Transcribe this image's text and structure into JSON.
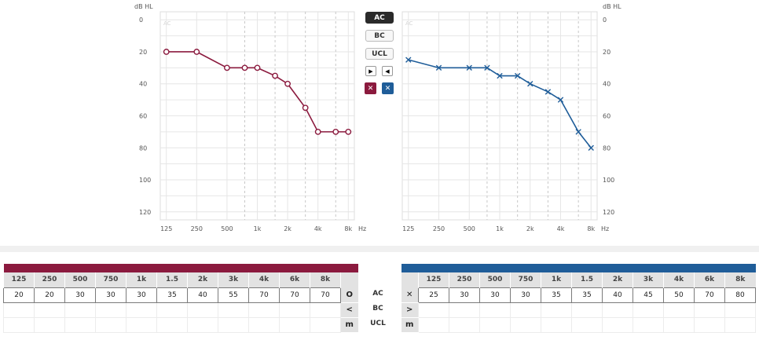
{
  "colors": {
    "right": "#8b1a3e",
    "left": "#1f5d99",
    "grid": "#e6e6e6",
    "dashed": "#c8c8c8"
  },
  "icons": {
    "right_marker": "circle-icon",
    "left_marker": "cross-icon",
    "right_bc": "chevron-left-icon",
    "left_bc": "chevron-right-icon",
    "ucl": "ucl-bracket-icon"
  },
  "controls": {
    "ac_label": "AC",
    "bc_label": "BC",
    "ucl_label": "UCL",
    "arrow_right": "▶",
    "arrow_left": "◀",
    "sym_right": "✕",
    "sym_left": "✕"
  },
  "chart_data": [
    {
      "type": "line",
      "title": "",
      "ylabel": "dB HL",
      "xlabel": "Hz",
      "ylim": [
        125,
        -5
      ],
      "y_ticks": [
        0,
        20,
        40,
        60,
        80,
        100,
        120
      ],
      "x_ticks": [
        "125",
        "250",
        "500",
        "1k",
        "2k",
        "4k",
        "8k"
      ],
      "x_scale": "log",
      "corner_label": "AC",
      "grid": true,
      "series": [
        {
          "x": [
            125,
            250,
            500,
            750,
            1000,
            1500,
            2000,
            3000,
            4000,
            6000,
            8000
          ],
          "y": [
            20,
            20,
            30,
            30,
            30,
            35,
            40,
            55,
            70,
            70,
            70
          ]
        }
      ]
    },
    {
      "type": "line",
      "title": "",
      "ylabel": "dB HL",
      "xlabel": "Hz",
      "ylim": [
        125,
        -5
      ],
      "y_ticks": [
        0,
        20,
        40,
        60,
        80,
        100,
        120
      ],
      "x_ticks": [
        "125",
        "250",
        "500",
        "1k",
        "2k",
        "4k",
        "8k"
      ],
      "x_scale": "log",
      "corner_label": "AC",
      "grid": true,
      "series": [
        {
          "x": [
            125,
            250,
            500,
            750,
            1000,
            1500,
            2000,
            3000,
            4000,
            6000,
            8000
          ],
          "y": [
            25,
            30,
            30,
            30,
            35,
            35,
            40,
            45,
            50,
            70,
            80
          ]
        }
      ]
    }
  ],
  "table_right": {
    "headers": [
      "125",
      "250",
      "500",
      "750",
      "1k",
      "1.5",
      "2k",
      "3k",
      "4k",
      "6k",
      "8k"
    ],
    "ac": [
      "20",
      "20",
      "30",
      "30",
      "30",
      "35",
      "40",
      "55",
      "70",
      "70",
      "70"
    ],
    "symbols": [
      "O",
      "<",
      "m"
    ]
  },
  "table_left": {
    "headers": [
      "125",
      "250",
      "500",
      "750",
      "1k",
      "1.5",
      "2k",
      "3k",
      "4k",
      "6k",
      "8k"
    ],
    "ac": [
      "25",
      "30",
      "30",
      "30",
      "35",
      "35",
      "40",
      "45",
      "50",
      "70",
      "80"
    ],
    "symbols": [
      "✕",
      ">",
      "m"
    ]
  },
  "row_labels": [
    "AC",
    "BC",
    "UCL"
  ]
}
